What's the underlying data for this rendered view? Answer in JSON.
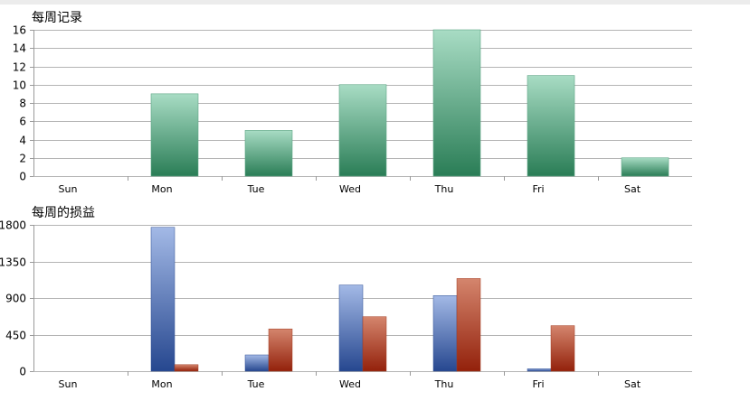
{
  "chart_data": [
    {
      "type": "bar",
      "title": "每周记录",
      "categories": [
        "Sun",
        "Mon",
        "Tue",
        "Wed",
        "Thu",
        "Fri",
        "Sat"
      ],
      "values": [
        0,
        9,
        5,
        10,
        16,
        11,
        2
      ],
      "ylim": [
        0,
        16
      ],
      "yticks": [
        0,
        2,
        4,
        6,
        8,
        10,
        12,
        14,
        16
      ],
      "grid": true,
      "colors": {
        "bar_top": "#a8dcc4",
        "bar_bottom": "#2a7d56",
        "bar_stroke": "#5ea585"
      }
    },
    {
      "type": "bar",
      "title": "每周的损益",
      "categories": [
        "Sun",
        "Mon",
        "Tue",
        "Wed",
        "Thu",
        "Fri",
        "Sat"
      ],
      "series": [
        {
          "values": [
            0,
            1770,
            200,
            1060,
            930,
            30,
            0
          ],
          "color_top": "#a3b9e6",
          "color_bottom": "#26478f"
        },
        {
          "values": [
            0,
            80,
            520,
            670,
            1140,
            560,
            0
          ],
          "color_top": "#d4856d",
          "color_bottom": "#93210b"
        }
      ],
      "ylim": [
        0,
        1800
      ],
      "yticks": [
        0,
        450,
        900,
        1350,
        1800
      ],
      "grid": true
    }
  ]
}
